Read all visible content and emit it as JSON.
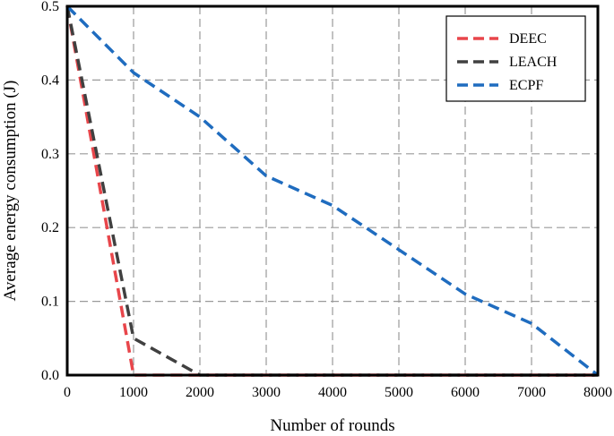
{
  "chart_data": {
    "type": "line",
    "title": "",
    "xlabel": "Number of rounds",
    "ylabel": "Average energy consumption (J)",
    "xlim": [
      0,
      8000
    ],
    "ylim": [
      0,
      0.5
    ],
    "x_ticks": [
      "0",
      "1000",
      "2000",
      "3000",
      "4000",
      "5000",
      "6000",
      "7000",
      "8000"
    ],
    "y_ticks": [
      "0.0",
      "0.1",
      "0.2",
      "0.3",
      "0.4",
      "0.5"
    ],
    "grid": true,
    "legend_position": "top-right",
    "series": [
      {
        "name": "DEEC",
        "color": "#e8464b",
        "points": [
          [
            0,
            0.5
          ],
          [
            1000,
            0.0
          ],
          [
            8000,
            0.0
          ]
        ]
      },
      {
        "name": "LEACH",
        "color": "#404040",
        "points": [
          [
            0,
            0.5
          ],
          [
            1000,
            0.05
          ],
          [
            2000,
            0.0
          ],
          [
            8000,
            0.0
          ]
        ]
      },
      {
        "name": "ECPF",
        "color": "#1f6cbf",
        "points": [
          [
            0,
            0.5
          ],
          [
            1000,
            0.41
          ],
          [
            2000,
            0.35
          ],
          [
            3000,
            0.27
          ],
          [
            4000,
            0.23
          ],
          [
            5000,
            0.17
          ],
          [
            6000,
            0.11
          ],
          [
            7000,
            0.07
          ],
          [
            8000,
            0.0
          ]
        ]
      }
    ]
  }
}
